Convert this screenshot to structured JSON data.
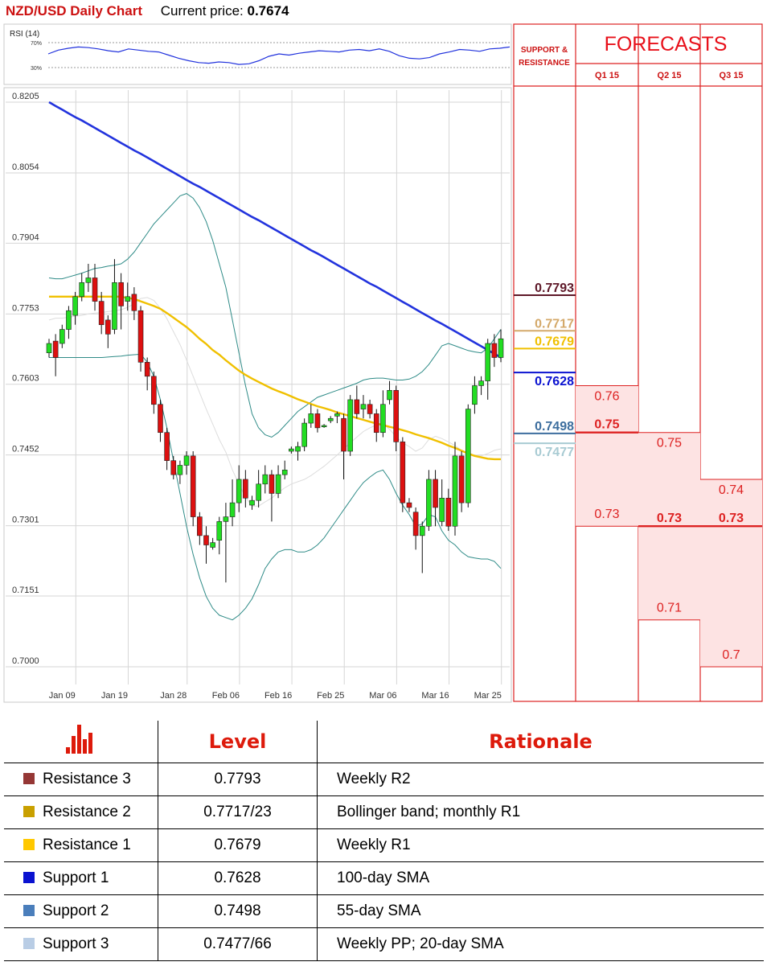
{
  "header": {
    "title": "NZD/USD Daily Chart",
    "price_label": "Current price:",
    "price_value": "0.7674"
  },
  "rsi": {
    "label": "RSI (14)",
    "upper": "70%",
    "lower": "30%",
    "upper_value": 70,
    "lower_value": 30,
    "values": [
      52,
      58,
      61,
      63,
      62,
      60,
      57,
      55,
      60,
      58,
      56,
      55,
      50,
      45,
      41,
      38,
      37,
      39,
      38,
      35,
      36,
      41,
      48,
      52,
      50,
      53,
      55,
      57,
      56,
      55,
      58,
      59,
      57,
      60,
      56,
      49,
      45,
      44,
      46,
      52,
      55,
      59,
      58,
      56,
      60,
      61,
      63
    ]
  },
  "chart_data": {
    "type": "candlestick",
    "title": "NZD/USD Daily Chart",
    "ylim": [
      0.7,
      0.8205
    ],
    "y_ticks": [
      "0.8205",
      "0.8054",
      "0.7904",
      "0.7753",
      "0.7603",
      "0.7452",
      "0.7301",
      "0.7151",
      "0.7000"
    ],
    "x_ticks": [
      "Jan 09",
      "Jan 19",
      "Jan 28",
      "Feb 06",
      "Feb 16",
      "Feb 25",
      "Mar 06",
      "Mar 16",
      "Mar 25"
    ],
    "candles": [
      [
        0.767,
        0.769,
        0.77,
        0.766
      ],
      [
        0.7695,
        0.766,
        0.771,
        0.762
      ],
      [
        0.769,
        0.772,
        0.773,
        0.768
      ],
      [
        0.772,
        0.776,
        0.777,
        0.77
      ],
      [
        0.775,
        0.779,
        0.78,
        0.773
      ],
      [
        0.779,
        0.782,
        0.784,
        0.778
      ],
      [
        0.782,
        0.783,
        0.786,
        0.78
      ],
      [
        0.783,
        0.778,
        0.786,
        0.776
      ],
      [
        0.778,
        0.773,
        0.78,
        0.771
      ],
      [
        0.774,
        0.771,
        0.775,
        0.768
      ],
      [
        0.772,
        0.782,
        0.787,
        0.771
      ],
      [
        0.782,
        0.777,
        0.784,
        0.772
      ],
      [
        0.778,
        0.779,
        0.782,
        0.776
      ],
      [
        0.7795,
        0.776,
        0.781,
        0.774
      ],
      [
        0.776,
        0.765,
        0.777,
        0.763
      ],
      [
        0.765,
        0.762,
        0.766,
        0.759
      ],
      [
        0.762,
        0.756,
        0.763,
        0.754
      ],
      [
        0.756,
        0.75,
        0.757,
        0.748
      ],
      [
        0.75,
        0.744,
        0.751,
        0.742
      ],
      [
        0.744,
        0.741,
        0.745,
        0.74
      ],
      [
        0.741,
        0.743,
        0.744,
        0.739
      ],
      [
        0.743,
        0.745,
        0.746,
        0.741
      ],
      [
        0.745,
        0.732,
        0.746,
        0.73
      ],
      [
        0.732,
        0.728,
        0.733,
        0.726
      ],
      [
        0.728,
        0.726,
        0.73,
        0.722
      ],
      [
        0.7255,
        0.7265,
        0.7275,
        0.725
      ],
      [
        0.727,
        0.731,
        0.732,
        0.724
      ],
      [
        0.731,
        0.732,
        0.735,
        0.718
      ],
      [
        0.732,
        0.735,
        0.74,
        0.73
      ],
      [
        0.735,
        0.74,
        0.743,
        0.733
      ],
      [
        0.74,
        0.736,
        0.742,
        0.734
      ],
      [
        0.7345,
        0.7355,
        0.7365,
        0.7335
      ],
      [
        0.7355,
        0.739,
        0.742,
        0.734
      ],
      [
        0.739,
        0.741,
        0.743,
        0.737
      ],
      [
        0.741,
        0.737,
        0.742,
        0.731
      ],
      [
        0.737,
        0.741,
        0.743,
        0.736
      ],
      [
        0.741,
        0.742,
        0.744,
        0.74
      ],
      [
        0.746,
        0.7465,
        0.747,
        0.7455
      ],
      [
        0.746,
        0.747,
        0.748,
        0.744
      ],
      [
        0.747,
        0.752,
        0.753,
        0.746
      ],
      [
        0.752,
        0.754,
        0.756,
        0.751
      ],
      [
        0.754,
        0.751,
        0.755,
        0.75
      ],
      [
        0.7512,
        0.7515,
        0.7518,
        0.751
      ],
      [
        0.7525,
        0.753,
        0.7535,
        0.752
      ],
      [
        0.7535,
        0.754,
        0.7545,
        0.752
      ],
      [
        0.753,
        0.746,
        0.754,
        0.74
      ],
      [
        0.746,
        0.757,
        0.758,
        0.745
      ],
      [
        0.757,
        0.754,
        0.76,
        0.753
      ],
      [
        0.755,
        0.756,
        0.758,
        0.753
      ],
      [
        0.756,
        0.754,
        0.757,
        0.753
      ],
      [
        0.754,
        0.75,
        0.755,
        0.748
      ],
      [
        0.75,
        0.756,
        0.759,
        0.749
      ],
      [
        0.757,
        0.759,
        0.761,
        0.756
      ],
      [
        0.759,
        0.748,
        0.76,
        0.746
      ],
      [
        0.748,
        0.735,
        0.749,
        0.733
      ],
      [
        0.735,
        0.734,
        0.736,
        0.733
      ],
      [
        0.733,
        0.728,
        0.734,
        0.725
      ],
      [
        0.728,
        0.73,
        0.731,
        0.72
      ],
      [
        0.73,
        0.74,
        0.742,
        0.729
      ],
      [
        0.74,
        0.734,
        0.742,
        0.73
      ],
      [
        0.731,
        0.736,
        0.74,
        0.73
      ],
      [
        0.736,
        0.73,
        0.738,
        0.729
      ],
      [
        0.73,
        0.745,
        0.748,
        0.728
      ],
      [
        0.745,
        0.735,
        0.746,
        0.733
      ],
      [
        0.735,
        0.755,
        0.756,
        0.734
      ],
      [
        0.756,
        0.76,
        0.762,
        0.754
      ],
      [
        0.76,
        0.761,
        0.762,
        0.758
      ],
      [
        0.761,
        0.769,
        0.77,
        0.757
      ],
      [
        0.769,
        0.766,
        0.771,
        0.764
      ],
      [
        0.766,
        0.77,
        0.772,
        0.765
      ]
    ],
    "series": [
      {
        "name": "",
        "color": "#2233dd",
        "values": [
          0.8205,
          0.8197,
          0.8189,
          0.8181,
          0.8173,
          0.8166,
          0.8158,
          0.815,
          0.8142,
          0.8134,
          0.8126,
          0.8118,
          0.811,
          0.8102,
          0.8095,
          0.8087,
          0.8079,
          0.8071,
          0.8063,
          0.8055,
          0.8047,
          0.8039,
          0.8031,
          0.8024,
          0.8016,
          0.8008,
          0.8,
          0.7992,
          0.7984,
          0.7976,
          0.7968,
          0.796,
          0.7953,
          0.7945,
          0.7937,
          0.7929,
          0.7921,
          0.7913,
          0.7905,
          0.7897,
          0.7889,
          0.7882,
          0.7874,
          0.7866,
          0.7858,
          0.785,
          0.7842,
          0.7834,
          0.7826,
          0.7818,
          0.7811,
          0.7803,
          0.7795,
          0.7787,
          0.7779,
          0.7771,
          0.7763,
          0.7755,
          0.7747,
          0.7739,
          0.7732,
          0.7724,
          0.7716,
          0.7708,
          0.77,
          0.7692,
          0.7684,
          0.7676,
          0.7668,
          0.766
        ]
      },
      {
        "name": "",
        "color": "#f0c000",
        "values": [
          0.779,
          0.779,
          0.779,
          0.779,
          0.779,
          0.779,
          0.779,
          0.779,
          0.779,
          0.779,
          0.779,
          0.779,
          0.7787,
          0.7785,
          0.778,
          0.7775,
          0.777,
          0.7764,
          0.7755,
          0.7745,
          0.7735,
          0.7725,
          0.7713,
          0.77,
          0.7689,
          0.7676,
          0.7666,
          0.7654,
          0.7643,
          0.7632,
          0.7623,
          0.7615,
          0.7608,
          0.7601,
          0.7594,
          0.7588,
          0.7583,
          0.7577,
          0.7571,
          0.7566,
          0.7561,
          0.7556,
          0.7552,
          0.7548,
          0.7543,
          0.7539,
          0.7535,
          0.7531,
          0.7527,
          0.7523,
          0.7519,
          0.7516,
          0.7512,
          0.7509,
          0.7505,
          0.7501,
          0.7496,
          0.7492,
          0.7488,
          0.7483,
          0.7478,
          0.7472,
          0.7467,
          0.7461,
          0.7455,
          0.745,
          0.7447,
          0.7444,
          0.7443,
          0.7443
        ]
      },
      {
        "name": "",
        "color": "#2e8b87",
        "values": [
          0.783,
          0.7828,
          0.7828,
          0.7832,
          0.7836,
          0.784,
          0.7845,
          0.785,
          0.7852,
          0.7855,
          0.7857,
          0.786,
          0.787,
          0.7885,
          0.7905,
          0.7925,
          0.7945,
          0.796,
          0.7975,
          0.799,
          0.8005,
          0.801,
          0.8,
          0.798,
          0.795,
          0.791,
          0.786,
          0.781,
          0.774,
          0.767,
          0.76,
          0.754,
          0.751,
          0.7495,
          0.749,
          0.75,
          0.7515,
          0.753,
          0.7545,
          0.7555,
          0.7565,
          0.7575,
          0.758,
          0.7585,
          0.759,
          0.7595,
          0.76,
          0.7605,
          0.7612,
          0.7615,
          0.7616,
          0.7616,
          0.7614,
          0.7612,
          0.7612,
          0.7614,
          0.762,
          0.763,
          0.7645,
          0.7665,
          0.7685,
          0.769,
          0.7685,
          0.768,
          0.7675,
          0.7672,
          0.767,
          0.768,
          0.77,
          0.772
        ]
      },
      {
        "name": "",
        "color": "#2e8b87",
        "values": [
          0.766,
          0.766,
          0.766,
          0.766,
          0.766,
          0.766,
          0.766,
          0.766,
          0.766,
          0.7661,
          0.7662,
          0.7663,
          0.7665,
          0.7666,
          0.7667,
          0.765,
          0.762,
          0.757,
          0.751,
          0.744,
          0.737,
          0.73,
          0.724,
          0.719,
          0.715,
          0.7125,
          0.711,
          0.7105,
          0.71,
          0.711,
          0.7125,
          0.7145,
          0.7175,
          0.721,
          0.723,
          0.7245,
          0.725,
          0.725,
          0.7245,
          0.7245,
          0.725,
          0.726,
          0.7275,
          0.7295,
          0.7315,
          0.7335,
          0.7355,
          0.7375,
          0.7393,
          0.7405,
          0.7415,
          0.742,
          0.74,
          0.737,
          0.7345,
          0.7325,
          0.73,
          0.7305,
          0.7325,
          0.732,
          0.729,
          0.727,
          0.726,
          0.7245,
          0.7235,
          0.7232,
          0.723,
          0.723,
          0.7225,
          0.721
        ]
      },
      {
        "name": "",
        "color": "#dddddd",
        "values": [
          0.774,
          0.7744,
          0.7744,
          0.7746,
          0.7748,
          0.775,
          0.7753,
          0.7755,
          0.7756,
          0.7758,
          0.776,
          0.7762,
          0.7767,
          0.7775,
          0.7786,
          0.7788,
          0.7782,
          0.7765,
          0.7743,
          0.7715,
          0.7688,
          0.7655,
          0.762,
          0.7585,
          0.755,
          0.7518,
          0.7485,
          0.7458,
          0.742,
          0.739,
          0.7362,
          0.7343,
          0.7343,
          0.7352,
          0.736,
          0.7372,
          0.7382,
          0.739,
          0.7395,
          0.74,
          0.7408,
          0.7418,
          0.7428,
          0.744,
          0.7452,
          0.7465,
          0.7478,
          0.749,
          0.7502,
          0.751,
          0.7516,
          0.7518,
          0.7507,
          0.7491,
          0.7478,
          0.747,
          0.746,
          0.7467,
          0.7485,
          0.7492,
          0.7487,
          0.748,
          0.7472,
          0.7462,
          0.7455,
          0.7452,
          0.745,
          0.7455,
          0.7462,
          0.7465
        ]
      }
    ]
  },
  "sr": {
    "header": "SUPPORT & RESISTANCE",
    "levels": [
      {
        "label": "0.7793",
        "value": 0.7793,
        "color": "#5e1828",
        "line": "#5e1828"
      },
      {
        "label": "0.7717",
        "value": 0.7717,
        "color": "#d4a96a",
        "line": "#d4a96a"
      },
      {
        "label": "0.7679",
        "value": 0.7679,
        "color": "#f0c000",
        "line": "#f0c000"
      },
      {
        "label": "0.7628",
        "value": 0.7628,
        "color": "#0a12d0",
        "line": "#0a12d0"
      },
      {
        "label": "0.7498",
        "value": 0.7498,
        "color": "#3d6e9e",
        "line": "#3d6e9e"
      },
      {
        "label": "0.7477",
        "value": 0.7477,
        "color": "#a8cbd3",
        "line": "#a8cbd3"
      }
    ]
  },
  "forecasts": {
    "title": "FORECASTS",
    "columns": [
      {
        "label": "Q1 15",
        "high": "0.76",
        "high_v": 0.76,
        "avg": "0.75",
        "avg_v": 0.75,
        "low": "0.73",
        "low_v": 0.73
      },
      {
        "label": "Q2 15",
        "high": "0.75",
        "high_v": 0.75,
        "avg": "0.73",
        "avg_v": 0.73,
        "low": "0.71",
        "low_v": 0.71
      },
      {
        "label": "Q3 15",
        "high": "0.74",
        "high_v": 0.74,
        "avg": "0.73",
        "avg_v": 0.73,
        "low": "0.7",
        "low_v": 0.7
      }
    ]
  },
  "table": {
    "col_level": "Level",
    "col_rationale": "Rationale",
    "rows": [
      {
        "name": "Resistance 3",
        "color": "#953735",
        "level": "0.7793",
        "rationale": "Weekly R2"
      },
      {
        "name": "Resistance 2",
        "color": "#c9a000",
        "level": "0.7717/23",
        "rationale": "Bollinger band; monthly R1"
      },
      {
        "name": "Resistance 1",
        "color": "#ffc800",
        "level": "0.7679",
        "rationale": "Weekly R1"
      },
      {
        "name": "Support 1",
        "color": "#0a12d0",
        "level": "0.7628",
        "rationale": "100-day SMA"
      },
      {
        "name": "Support 2",
        "color": "#4a7ebb",
        "level": "0.7498",
        "rationale": "55-day SMA"
      },
      {
        "name": "Support 3",
        "color": "#b9cde5",
        "level": "0.7477/66",
        "rationale": "Weekly PP; 20-day SMA"
      }
    ]
  }
}
